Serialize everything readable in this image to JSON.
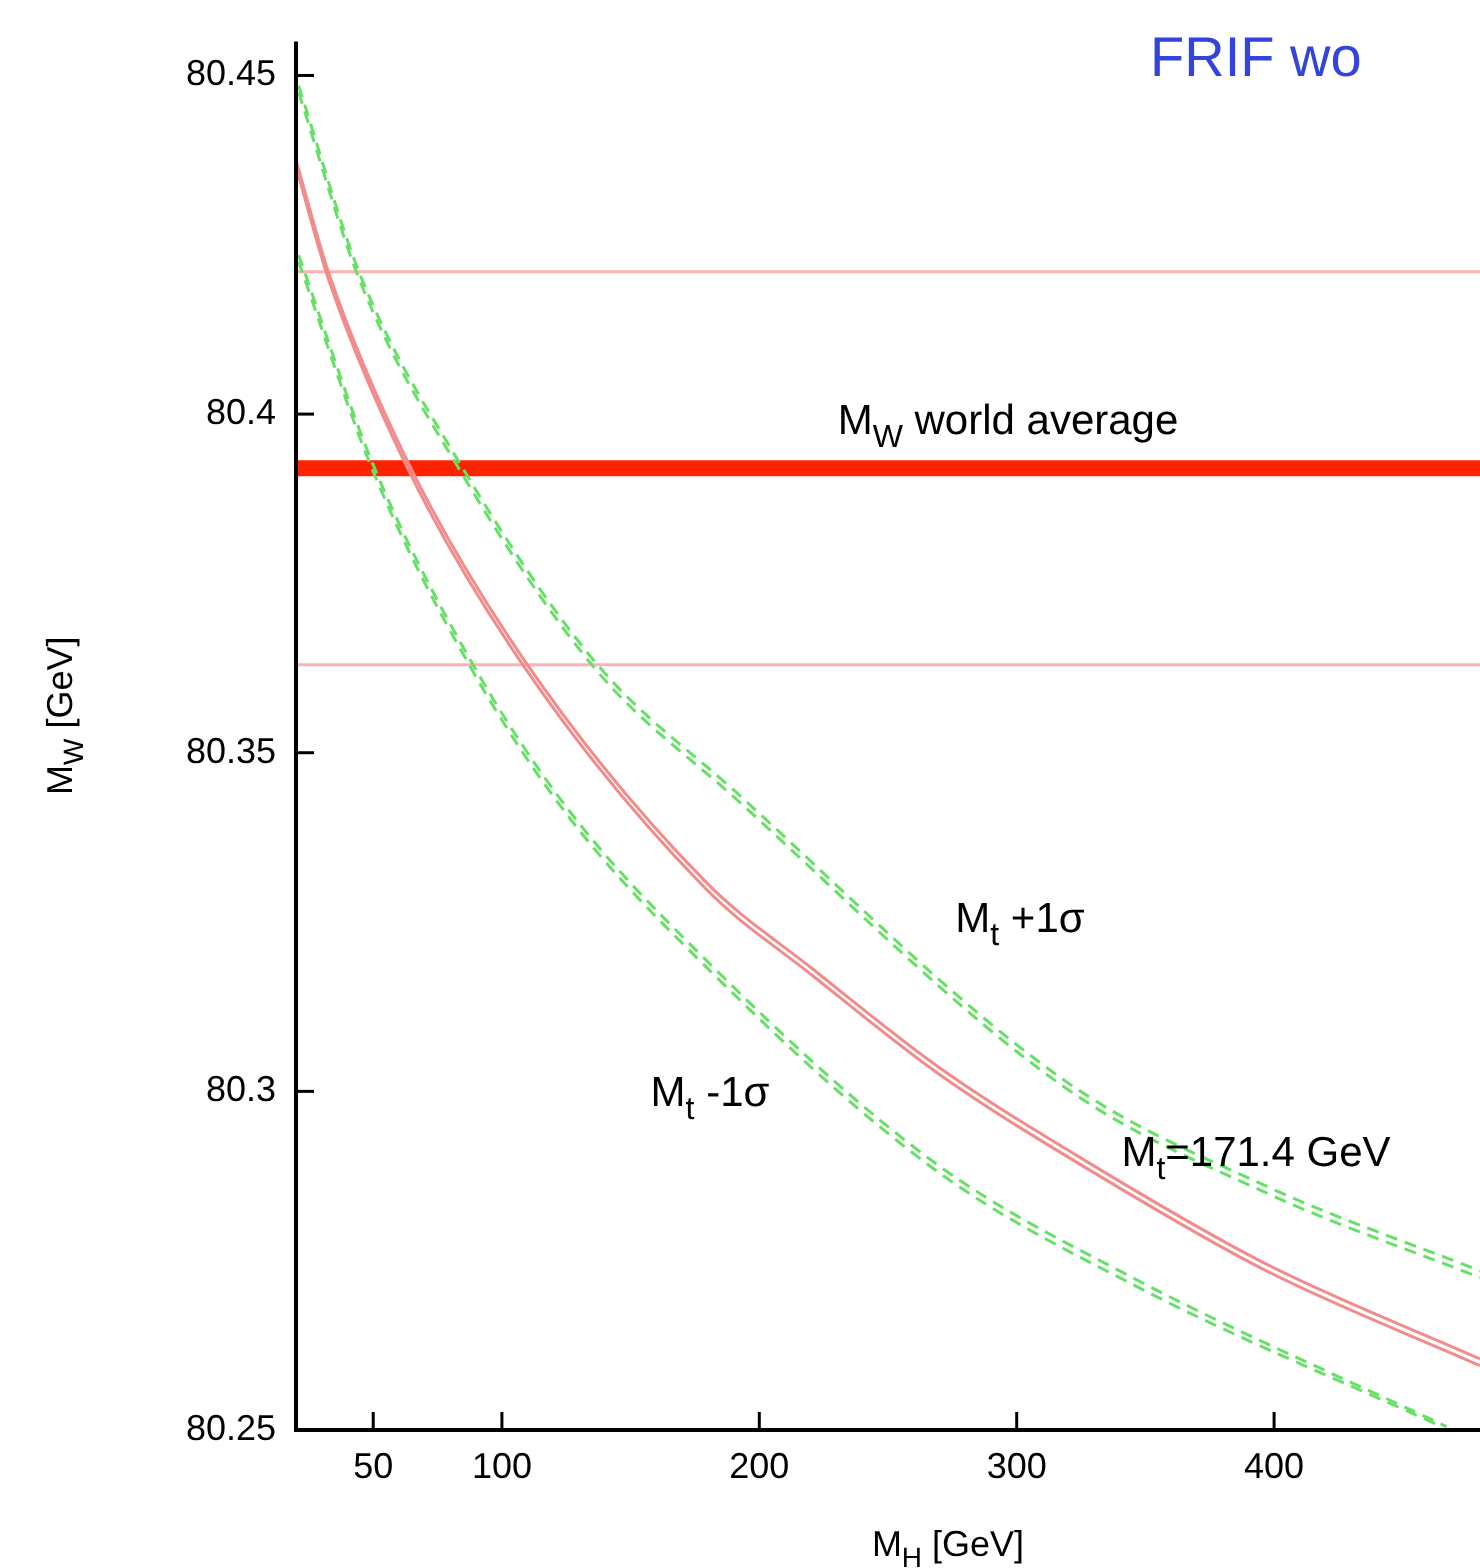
{
  "chart_data": {
    "type": "line",
    "title": "FRIF wo",
    "xlabel": "M$_{H}$ [GeV]",
    "ylabel": "M$_{W}$ [GeV]",
    "xlim": [
      20,
      480
    ],
    "xticks": [
      50,
      100,
      200,
      300,
      400
    ],
    "ylim": [
      80.25,
      80.455
    ],
    "yticks": [
      80.25,
      80.3,
      80.35,
      80.4,
      80.45
    ],
    "grid": false,
    "legend": false,
    "marker": "none",
    "series": [
      {
        "name": "M$_{t}$=171.4 GeV",
        "color": "#f28b8b",
        "line_style": "solid",
        "x": [
          20,
          33,
          64,
          109,
          179,
          221,
          270,
          330,
          397,
          480
        ],
        "values": [
          80.4375,
          80.4205,
          80.3925,
          80.3635,
          80.331,
          80.318,
          80.3035,
          80.289,
          80.2745,
          80.2605
        ]
      },
      {
        "color": "#f28b8b",
        "line_style": "solid",
        "x": [
          20,
          33,
          64,
          109,
          179,
          221,
          270,
          330,
          397,
          480
        ],
        "values": [
          80.4365,
          80.4195,
          80.3915,
          80.3625,
          80.33,
          80.317,
          80.3025,
          80.288,
          80.2735,
          80.2595
        ]
      },
      {
        "name": "M$_{t}$ +1σ",
        "color": "#66e066",
        "line_style": "dashed",
        "x": [
          21,
          45,
          84,
          136,
          190,
          319,
          397,
          480
        ],
        "values": [
          80.4485,
          80.4205,
          80.3925,
          80.3635,
          80.3445,
          80.3015,
          80.286,
          80.2735
        ]
      },
      {
        "color": "#66e066",
        "line_style": "dashed",
        "x": [
          21,
          45,
          84,
          136,
          190,
          319,
          397,
          480
        ],
        "values": [
          80.4475,
          80.4195,
          80.3915,
          80.3625,
          80.3435,
          80.3005,
          80.285,
          80.2725
        ]
      },
      {
        "name": "M$_{t}$ -1σ",
        "color": "#66e066",
        "line_style": "dashed",
        "x": [
          21,
          50,
          88,
          125,
          179,
          268,
          345,
          467
        ],
        "values": [
          80.4235,
          80.3925,
          80.3635,
          80.342,
          80.3195,
          80.2895,
          80.2725,
          80.2505
        ]
      },
      {
        "color": "#66e066",
        "line_style": "dashed",
        "x": [
          21,
          50,
          88,
          125,
          179,
          268,
          345,
          465
        ],
        "values": [
          80.4225,
          80.3915,
          80.3625,
          80.341,
          80.3185,
          80.2885,
          80.2715,
          80.2505
        ]
      }
    ],
    "ref_lines": [
      {
        "axis": "y",
        "value": 80.392,
        "label": "M$_{W}$ world average",
        "color": "#ff2200"
      },
      {
        "axis": "y",
        "value": 80.421,
        "color": "#ffb0b0"
      },
      {
        "axis": "y",
        "value": 80.363,
        "color": "#ffb0b0"
      }
    ]
  }
}
